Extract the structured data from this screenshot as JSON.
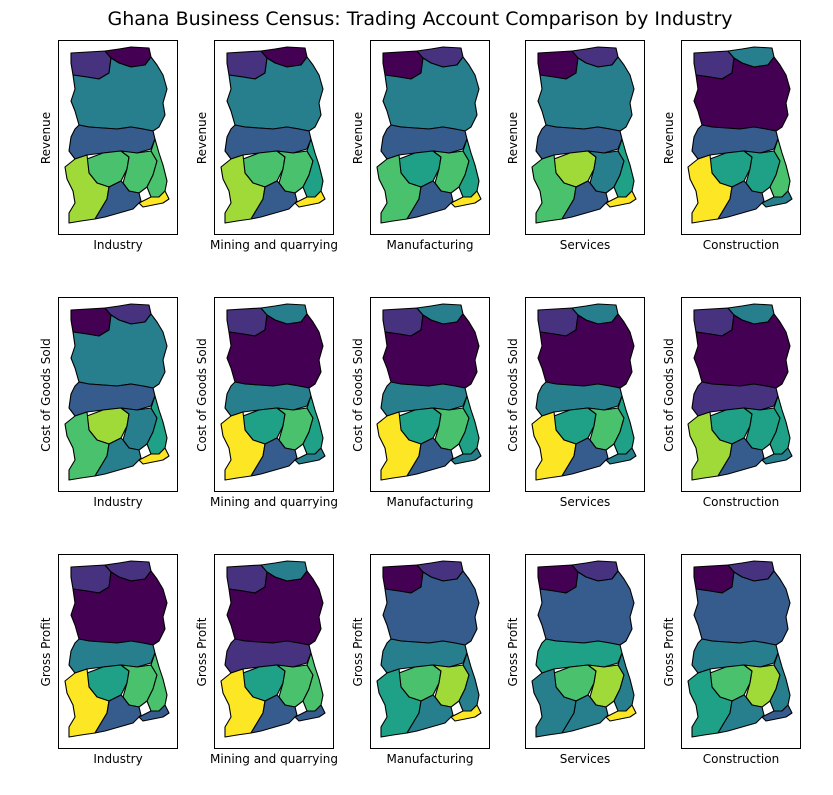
{
  "title": "Ghana Business Census: Trading Account Comparison by Industry",
  "palette": {
    "v1": "#440154",
    "v2": "#46327e",
    "v3": "#365c8d",
    "v4": "#277f8e",
    "v5": "#1fa187",
    "v6": "#4ac16d",
    "v7": "#a0da39",
    "v8": "#fde725"
  },
  "industries": [
    "Industry",
    "Mining and quarrying",
    "Manufacturing",
    "Services",
    "Construction"
  ],
  "measures": [
    "Revenue",
    "Cost of Goods Sold",
    "Gross Profit"
  ],
  "region_order": [
    "upper_west",
    "upper_east",
    "northern",
    "brong_ahafo",
    "ashanti",
    "eastern",
    "volta",
    "western",
    "central",
    "greater_accra"
  ],
  "chart_data": {
    "type": "choropleth",
    "colormap": "viridis",
    "color_levels": [
      "v1",
      "v2",
      "v3",
      "v4",
      "v5",
      "v6",
      "v7",
      "v8"
    ],
    "maps": [
      {
        "measure": "Revenue",
        "industry": "Industry",
        "regions": {
          "upper_west": "v2",
          "upper_east": "v1",
          "northern": "v4",
          "brong_ahafo": "v3",
          "ashanti": "v6",
          "eastern": "v6",
          "volta": "v6",
          "western": "v7",
          "central": "v3",
          "greater_accra": "v8"
        }
      },
      {
        "measure": "Revenue",
        "industry": "Mining and quarrying",
        "regions": {
          "upper_west": "v2",
          "upper_east": "v1",
          "northern": "v4",
          "brong_ahafo": "v3",
          "ashanti": "v6",
          "eastern": "v6",
          "volta": "v5",
          "western": "v7",
          "central": "v3",
          "greater_accra": "v8"
        }
      },
      {
        "measure": "Revenue",
        "industry": "Manufacturing",
        "regions": {
          "upper_west": "v1",
          "upper_east": "v2",
          "northern": "v4",
          "brong_ahafo": "v3",
          "ashanti": "v5",
          "eastern": "v6",
          "volta": "v5",
          "western": "v6",
          "central": "v3",
          "greater_accra": "v8"
        }
      },
      {
        "measure": "Revenue",
        "industry": "Services",
        "regions": {
          "upper_west": "v1",
          "upper_east": "v2",
          "northern": "v4",
          "brong_ahafo": "v3",
          "ashanti": "v7",
          "eastern": "v4",
          "volta": "v5",
          "western": "v6",
          "central": "v3",
          "greater_accra": "v8"
        }
      },
      {
        "measure": "Revenue",
        "industry": "Construction",
        "regions": {
          "upper_west": "v2",
          "upper_east": "v4",
          "northern": "v1",
          "brong_ahafo": "v3",
          "ashanti": "v5",
          "eastern": "v5",
          "volta": "v6",
          "western": "v8",
          "central": "v3",
          "greater_accra": "v4"
        }
      },
      {
        "measure": "Cost of Goods Sold",
        "industry": "Industry",
        "regions": {
          "upper_west": "v1",
          "upper_east": "v2",
          "northern": "v4",
          "brong_ahafo": "v3",
          "ashanti": "v7",
          "eastern": "v4",
          "volta": "v5",
          "western": "v6",
          "central": "v4",
          "greater_accra": "v8"
        }
      },
      {
        "measure": "Cost of Goods Sold",
        "industry": "Mining and quarrying",
        "regions": {
          "upper_west": "v2",
          "upper_east": "v4",
          "northern": "v1",
          "brong_ahafo": "v4",
          "ashanti": "v5",
          "eastern": "v6",
          "volta": "v5",
          "western": "v8",
          "central": "v3",
          "greater_accra": "v4"
        }
      },
      {
        "measure": "Cost of Goods Sold",
        "industry": "Manufacturing",
        "regions": {
          "upper_west": "v2",
          "upper_east": "v4",
          "northern": "v1",
          "brong_ahafo": "v4",
          "ashanti": "v5",
          "eastern": "v6",
          "volta": "v5",
          "western": "v8",
          "central": "v3",
          "greater_accra": "v4"
        }
      },
      {
        "measure": "Cost of Goods Sold",
        "industry": "Services",
        "regions": {
          "upper_west": "v2",
          "upper_east": "v4",
          "northern": "v1",
          "brong_ahafo": "v4",
          "ashanti": "v5",
          "eastern": "v6",
          "volta": "v5",
          "western": "v8",
          "central": "v3",
          "greater_accra": "v4"
        }
      },
      {
        "measure": "Cost of Goods Sold",
        "industry": "Construction",
        "regions": {
          "upper_west": "v2",
          "upper_east": "v4",
          "northern": "v1",
          "brong_ahafo": "v2",
          "ashanti": "v5",
          "eastern": "v5",
          "volta": "v5",
          "western": "v7",
          "central": "v3",
          "greater_accra": "v4"
        }
      },
      {
        "measure": "Gross Profit",
        "industry": "Industry",
        "regions": {
          "upper_west": "v2",
          "upper_east": "v2",
          "northern": "v1",
          "brong_ahafo": "v4",
          "ashanti": "v5",
          "eastern": "v6",
          "volta": "v6",
          "western": "v8",
          "central": "v3",
          "greater_accra": "v3"
        }
      },
      {
        "measure": "Gross Profit",
        "industry": "Mining and quarrying",
        "regions": {
          "upper_west": "v2",
          "upper_east": "v4",
          "northern": "v1",
          "brong_ahafo": "v2",
          "ashanti": "v5",
          "eastern": "v6",
          "volta": "v6",
          "western": "v8",
          "central": "v3",
          "greater_accra": "v3"
        }
      },
      {
        "measure": "Gross Profit",
        "industry": "Manufacturing",
        "regions": {
          "upper_west": "v1",
          "upper_east": "v2",
          "northern": "v3",
          "brong_ahafo": "v4",
          "ashanti": "v6",
          "eastern": "v7",
          "volta": "v4",
          "western": "v5",
          "central": "v4",
          "greater_accra": "v8"
        }
      },
      {
        "measure": "Gross Profit",
        "industry": "Services",
        "regions": {
          "upper_west": "v1",
          "upper_east": "v2",
          "northern": "v3",
          "brong_ahafo": "v5",
          "ashanti": "v6",
          "eastern": "v7",
          "volta": "v4",
          "western": "v4",
          "central": "v4",
          "greater_accra": "v8"
        }
      },
      {
        "measure": "Gross Profit",
        "industry": "Construction",
        "regions": {
          "upper_west": "v1",
          "upper_east": "v2",
          "northern": "v3",
          "brong_ahafo": "v4",
          "ashanti": "v6",
          "eastern": "v7",
          "volta": "v4",
          "western": "v5",
          "central": "v4",
          "greater_accra": "v3"
        }
      }
    ]
  }
}
